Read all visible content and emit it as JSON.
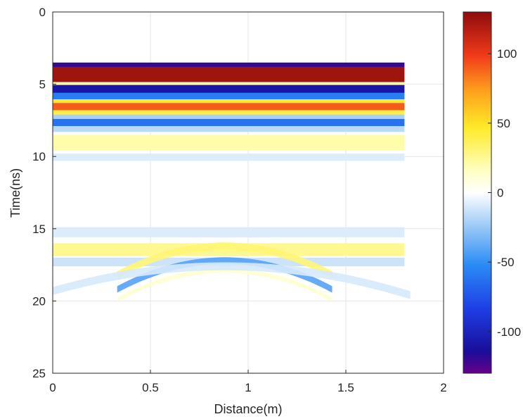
{
  "chart_data": {
    "type": "heatmap",
    "title": "",
    "xlabel": "Distance(m)",
    "ylabel": "Time(ns)",
    "xlim": [
      0,
      2
    ],
    "ylim": [
      0,
      25
    ],
    "y_reversed": true,
    "grid": true,
    "x_ticks": [
      "0",
      "0.5",
      "1",
      "1.5",
      "2"
    ],
    "y_ticks": [
      "0",
      "5",
      "10",
      "15",
      "20",
      "25"
    ],
    "data_x_range": [
      0,
      1.8
    ],
    "colorbar": {
      "range": [
        -130,
        130
      ],
      "ticks": [
        "100",
        "50",
        "0",
        "-50",
        "-100"
      ],
      "tick_values": [
        100,
        50,
        0,
        -50,
        -100
      ],
      "colormap": "jet-like with white center"
    },
    "horizontal_bands": [
      {
        "t_start": 3.5,
        "t_end": 3.8,
        "value": -120
      },
      {
        "t_start": 3.8,
        "t_end": 4.85,
        "value": 125
      },
      {
        "t_start": 4.85,
        "t_end": 5.05,
        "value": 15
      },
      {
        "t_start": 5.05,
        "t_end": 5.6,
        "value": -110
      },
      {
        "t_start": 5.6,
        "t_end": 6.05,
        "value": -60
      },
      {
        "t_start": 6.05,
        "t_end": 6.3,
        "value": 40
      },
      {
        "t_start": 6.3,
        "t_end": 6.8,
        "value": 90
      },
      {
        "t_start": 6.8,
        "t_end": 7.1,
        "value": 35
      },
      {
        "t_start": 7.1,
        "t_end": 7.4,
        "value": -25
      },
      {
        "t_start": 7.4,
        "t_end": 7.9,
        "value": -65
      },
      {
        "t_start": 7.9,
        "t_end": 8.3,
        "value": -20
      },
      {
        "t_start": 8.5,
        "t_end": 9.6,
        "value": 15
      },
      {
        "t_start": 9.8,
        "t_end": 10.3,
        "value": -10
      },
      {
        "t_start": 14.9,
        "t_end": 15.6,
        "value": -10
      },
      {
        "t_start": 16.0,
        "t_end": 16.9,
        "value": 20
      },
      {
        "t_start": 17.0,
        "t_end": 17.6,
        "value": -15
      }
    ],
    "hyperbolas": [
      {
        "apex_x": 0.88,
        "apex_t": 16.2,
        "thickness": 0.5,
        "spread": 0.55,
        "value": 25
      },
      {
        "apex_x": 0.88,
        "apex_t": 17.2,
        "thickness": 0.45,
        "spread": 0.55,
        "value": -45
      },
      {
        "apex_x": 0.88,
        "apex_t": 17.9,
        "thickness": 0.3,
        "spread": 0.55,
        "value": 8
      },
      {
        "apex_x": 0.88,
        "apex_t": 17.6,
        "thickness": 0.55,
        "spread": 0.95,
        "value": -12
      }
    ]
  }
}
